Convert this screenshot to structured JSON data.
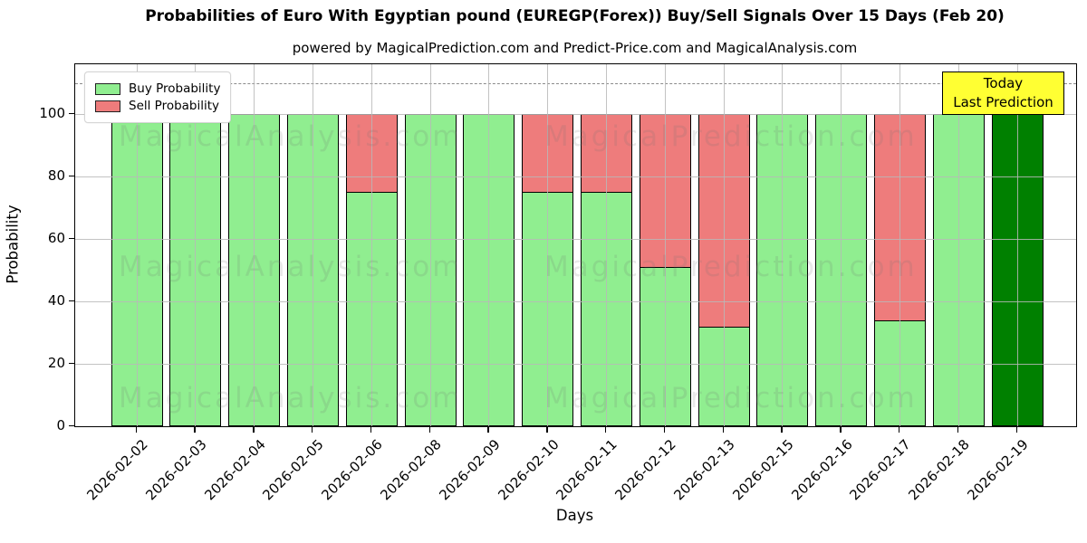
{
  "title": "Probabilities of Euro With Egyptian pound (EUREGP(Forex)) Buy/Sell Signals Over 15 Days (Feb 20)",
  "subtitle": "powered by MagicalPrediction.com and Predict-Price.com and MagicalAnalysis.com",
  "legend": {
    "items": [
      {
        "label": "Buy Probability",
        "color": "#90ee90"
      },
      {
        "label": "Sell Probability",
        "color": "#ee7c7c"
      }
    ]
  },
  "today_box": {
    "line1": "Today",
    "line2": "Last Prediction",
    "bg_color": "#ffff33"
  },
  "axes": {
    "ylabel": "Probability",
    "xlabel": "Days",
    "yticks": [
      0,
      20,
      40,
      60,
      80,
      100
    ]
  },
  "watermarks": {
    "left_text": "MagicalAnalysis.com",
    "right_text": "MagicalPrediction.com"
  },
  "chart_data": {
    "type": "bar",
    "stacked": true,
    "title": "Probabilities of Euro With Egyptian pound (EUREGP(Forex)) Buy/Sell Signals Over 15 Days (Feb 20)",
    "xlabel": "Days",
    "ylabel": "Probability",
    "ylim": [
      0,
      116
    ],
    "grid": true,
    "legend_position": "upper left",
    "dashed_reference_line_y": 110,
    "categories": [
      "2026-02-02",
      "2026-02-03",
      "2026-02-04",
      "2026-02-05",
      "2026-02-06",
      "2026-02-08",
      "2026-02-09",
      "2026-02-10",
      "2026-02-11",
      "2026-02-12",
      "2026-02-13",
      "2026-02-15",
      "2026-02-16",
      "2026-02-17",
      "2026-02-18",
      "2026-02-19"
    ],
    "series": [
      {
        "name": "Buy Probability",
        "color": "#90ee90",
        "values": [
          100,
          100,
          100,
          100,
          75,
          100,
          100,
          75,
          75,
          51,
          32,
          100,
          100,
          34,
          100,
          100
        ]
      },
      {
        "name": "Sell Probability",
        "color": "#ee7c7c",
        "values": [
          0,
          0,
          0,
          0,
          25,
          0,
          0,
          25,
          25,
          49,
          68,
          0,
          0,
          66,
          0,
          0
        ]
      }
    ],
    "buy_bar_colors": [
      "#90ee90",
      "#90ee90",
      "#90ee90",
      "#90ee90",
      "#90ee90",
      "#90ee90",
      "#90ee90",
      "#90ee90",
      "#90ee90",
      "#90ee90",
      "#90ee90",
      "#90ee90",
      "#90ee90",
      "#90ee90",
      "#90ee90",
      "#008000"
    ],
    "last_bar_note": "Today / Last Prediction bar drawn in dark green"
  }
}
